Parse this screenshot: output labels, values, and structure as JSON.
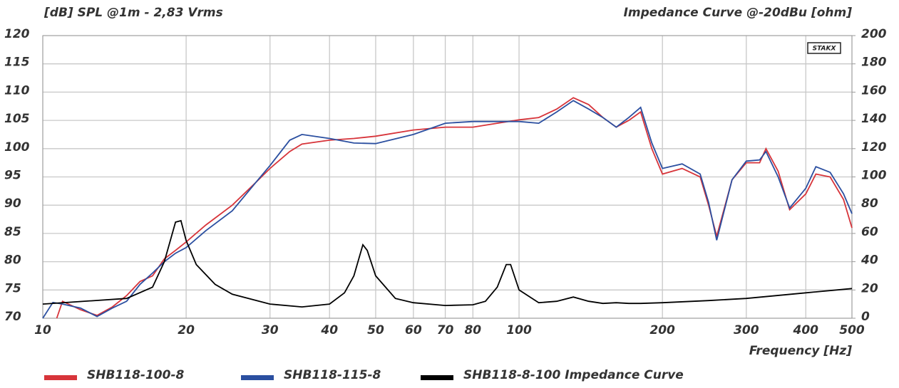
{
  "chart_data": {
    "type": "line",
    "title_left": "[dB]  SPL @1m - 2,83 Vrms",
    "title_right": "Impedance Curve @-20dBu  [ohm]",
    "x_label": "Frequency  [Hz]",
    "logo": "STAKX",
    "x_scale": "log",
    "grid": true,
    "legend": "bottom",
    "xlim": [
      10,
      500
    ],
    "xticks": [
      10,
      20,
      30,
      40,
      50,
      60,
      70,
      80,
      100,
      200,
      300,
      400,
      500
    ],
    "ylim": [
      70,
      120
    ],
    "yticks": [
      70,
      75,
      80,
      85,
      90,
      95,
      100,
      105,
      110,
      115,
      120
    ],
    "y2lim": [
      0,
      200
    ],
    "y2ticks": [
      0,
      20,
      40,
      60,
      80,
      100,
      120,
      140,
      160,
      180,
      200
    ],
    "series": [
      {
        "name": "SHB118-100-8",
        "color": "#d7343a",
        "x": [
          10.7,
          11,
          12,
          13,
          14,
          15,
          16,
          17,
          18,
          19,
          20,
          22,
          25,
          28,
          30,
          33,
          35,
          40,
          45,
          50,
          60,
          70,
          80,
          90,
          100,
          110,
          120,
          130,
          140,
          150,
          160,
          170,
          180,
          190,
          200,
          220,
          240,
          250,
          260,
          280,
          300,
          320,
          330,
          350,
          370,
          400,
          420,
          450,
          480,
          500
        ],
        "values": [
          70,
          73,
          71.5,
          70.5,
          72,
          74,
          76.5,
          77.5,
          80.5,
          82,
          83.5,
          86.5,
          90,
          94,
          96.5,
          99.5,
          100.8,
          101.5,
          101.8,
          102.2,
          103.3,
          103.8,
          103.8,
          104.5,
          105.1,
          105.5,
          107,
          109,
          107.8,
          105.5,
          103.8,
          105,
          106.5,
          100,
          95.5,
          96.5,
          95,
          90,
          84.5,
          94.5,
          97.5,
          97.5,
          100,
          96,
          89.2,
          92,
          95.5,
          95,
          91,
          86
        ]
      },
      {
        "name": "SHB118-115-8",
        "color": "#2b4fa0",
        "x": [
          10,
          10.5,
          11,
          12,
          13,
          14,
          15,
          16,
          17,
          18,
          19,
          20,
          22,
          25,
          28,
          30,
          33,
          35,
          40,
          45,
          50,
          60,
          70,
          80,
          90,
          100,
          110,
          120,
          130,
          140,
          150,
          160,
          170,
          180,
          190,
          200,
          220,
          240,
          250,
          260,
          280,
          300,
          320,
          330,
          350,
          370,
          400,
          420,
          450,
          480,
          500
        ],
        "values": [
          70,
          72.8,
          72.5,
          71.8,
          70.3,
          71.8,
          73,
          76,
          78,
          80,
          81.5,
          82.5,
          85.5,
          89,
          94,
          97,
          101.5,
          102.5,
          101.8,
          101,
          100.9,
          102.5,
          104.5,
          104.8,
          104.8,
          104.8,
          104.5,
          106.5,
          108.5,
          107,
          105.5,
          103.8,
          105.5,
          107.3,
          101,
          96.5,
          97.3,
          95.5,
          90.5,
          83.8,
          94.5,
          97.8,
          98,
          99.5,
          95,
          89.5,
          93,
          96.8,
          95.8,
          92,
          88.5
        ]
      },
      {
        "name": "SHB118-8-100 Impedance Curve",
        "color": "#000000",
        "axis": "y2",
        "x": [
          10,
          15,
          17,
          18,
          19,
          19.5,
          20,
          21,
          23,
          25,
          30,
          35,
          40,
          43,
          45,
          47,
          48,
          50,
          55,
          60,
          70,
          80,
          85,
          90,
          94,
          96,
          100,
          110,
          120,
          130,
          140,
          150,
          160,
          170,
          180,
          200,
          250,
          300,
          400,
          500
        ],
        "values": [
          10,
          14,
          22,
          40,
          68,
          69,
          55,
          38,
          24,
          17,
          10,
          8,
          10,
          18,
          30,
          52,
          48,
          30,
          14,
          11,
          9,
          9.5,
          12,
          22,
          38,
          38,
          20,
          11,
          12,
          15,
          12,
          10.5,
          11,
          10.5,
          10.5,
          11,
          12.5,
          14,
          18,
          21
        ]
      }
    ]
  }
}
